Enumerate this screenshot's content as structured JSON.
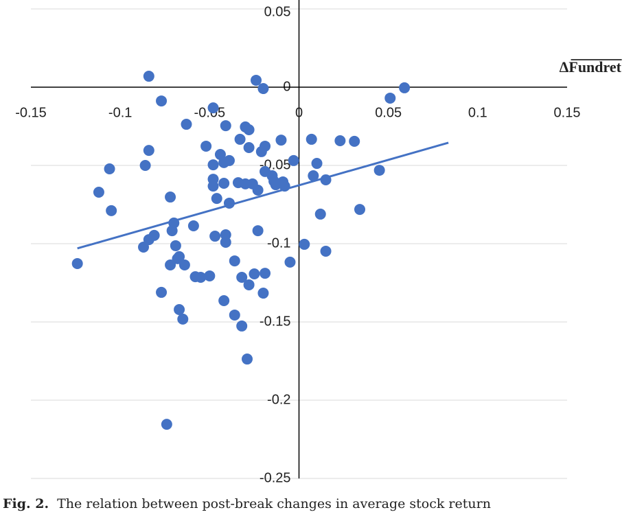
{
  "chart_data": {
    "type": "scatter",
    "x_axis_label": "ΔFundret",
    "caption_label": "Fig. 2.",
    "caption": "The relation between post-break changes in average stock return",
    "color": "#4472c4",
    "x": [
      -0.084,
      -0.024,
      -0.02,
      0.059,
      0.051,
      -0.077,
      -0.048,
      -0.063,
      -0.041,
      -0.03,
      -0.028,
      -0.033,
      -0.028,
      -0.052,
      -0.019,
      -0.021,
      -0.01,
      0.007,
      0.023,
      0.031,
      -0.084,
      -0.044,
      -0.039,
      -0.048,
      -0.042,
      -0.003,
      0.01,
      -0.106,
      -0.086,
      -0.019,
      -0.015,
      0.008,
      0.045,
      -0.048,
      -0.014,
      -0.009,
      0.015,
      -0.013,
      -0.008,
      -0.048,
      -0.042,
      -0.034,
      -0.03,
      -0.026,
      -0.023,
      -0.112,
      -0.072,
      -0.046,
      -0.039,
      -0.105,
      0.034,
      0.012,
      -0.07,
      -0.059,
      -0.071,
      -0.023,
      -0.081,
      -0.047,
      -0.041,
      -0.084,
      -0.041,
      -0.087,
      -0.069,
      0.003,
      0.015,
      -0.124,
      -0.067,
      -0.068,
      -0.072,
      -0.064,
      -0.036,
      -0.005,
      -0.058,
      -0.055,
      -0.05,
      -0.032,
      -0.025,
      -0.019,
      -0.028,
      -0.077,
      -0.02,
      -0.042,
      -0.067,
      -0.065,
      -0.036,
      -0.032,
      -0.029,
      -0.074
    ],
    "y": [
      0.007,
      0.0044,
      -0.0009,
      -0.0004,
      -0.007,
      -0.0088,
      -0.0132,
      -0.0237,
      -0.0246,
      -0.0254,
      -0.0272,
      -0.0333,
      -0.0386,
      -0.0377,
      -0.0377,
      -0.0412,
      -0.0338,
      -0.0333,
      -0.0342,
      -0.0346,
      -0.0404,
      -0.043,
      -0.0469,
      -0.0496,
      -0.0482,
      -0.0469,
      -0.0487,
      -0.0522,
      -0.05,
      -0.0539,
      -0.0566,
      -0.0566,
      -0.0531,
      -0.0588,
      -0.0601,
      -0.0605,
      -0.0592,
      -0.0623,
      -0.0632,
      -0.0632,
      -0.0614,
      -0.061,
      -0.0618,
      -0.0618,
      -0.0658,
      -0.0671,
      -0.0702,
      -0.0711,
      -0.0741,
      -0.0789,
      -0.0781,
      -0.0811,
      -0.0868,
      -0.0886,
      -0.0917,
      -0.0917,
      -0.0947,
      -0.0952,
      -0.0943,
      -0.0974,
      -0.0991,
      -0.1022,
      -0.1013,
      -0.1004,
      -0.1048,
      -0.1127,
      -0.1083,
      -0.1096,
      -0.1136,
      -0.1136,
      -0.111,
      -0.1118,
      -0.1211,
      -0.1215,
      -0.1206,
      -0.1215,
      -0.1193,
      -0.1189,
      -0.1263,
      -0.1311,
      -0.1316,
      -0.1364,
      -0.1421,
      -0.1482,
      -0.1456,
      -0.1526,
      -0.1737,
      -0.2154
    ],
    "trendline": {
      "x": [
        -0.124,
        0.0836
      ],
      "y": [
        -0.103,
        -0.0355
      ],
      "color": "#4472c4"
    },
    "xlim": [
      -0.15,
      0.15
    ],
    "xticks": [
      -0.15,
      -0.1,
      -0.05,
      0,
      0.05,
      0.1,
      0.15
    ],
    "ylim": [
      -0.25,
      0.05
    ],
    "yticks": [
      0.05,
      0,
      -0.05,
      -0.1,
      -0.15,
      -0.2,
      -0.25
    ],
    "grid": true
  }
}
